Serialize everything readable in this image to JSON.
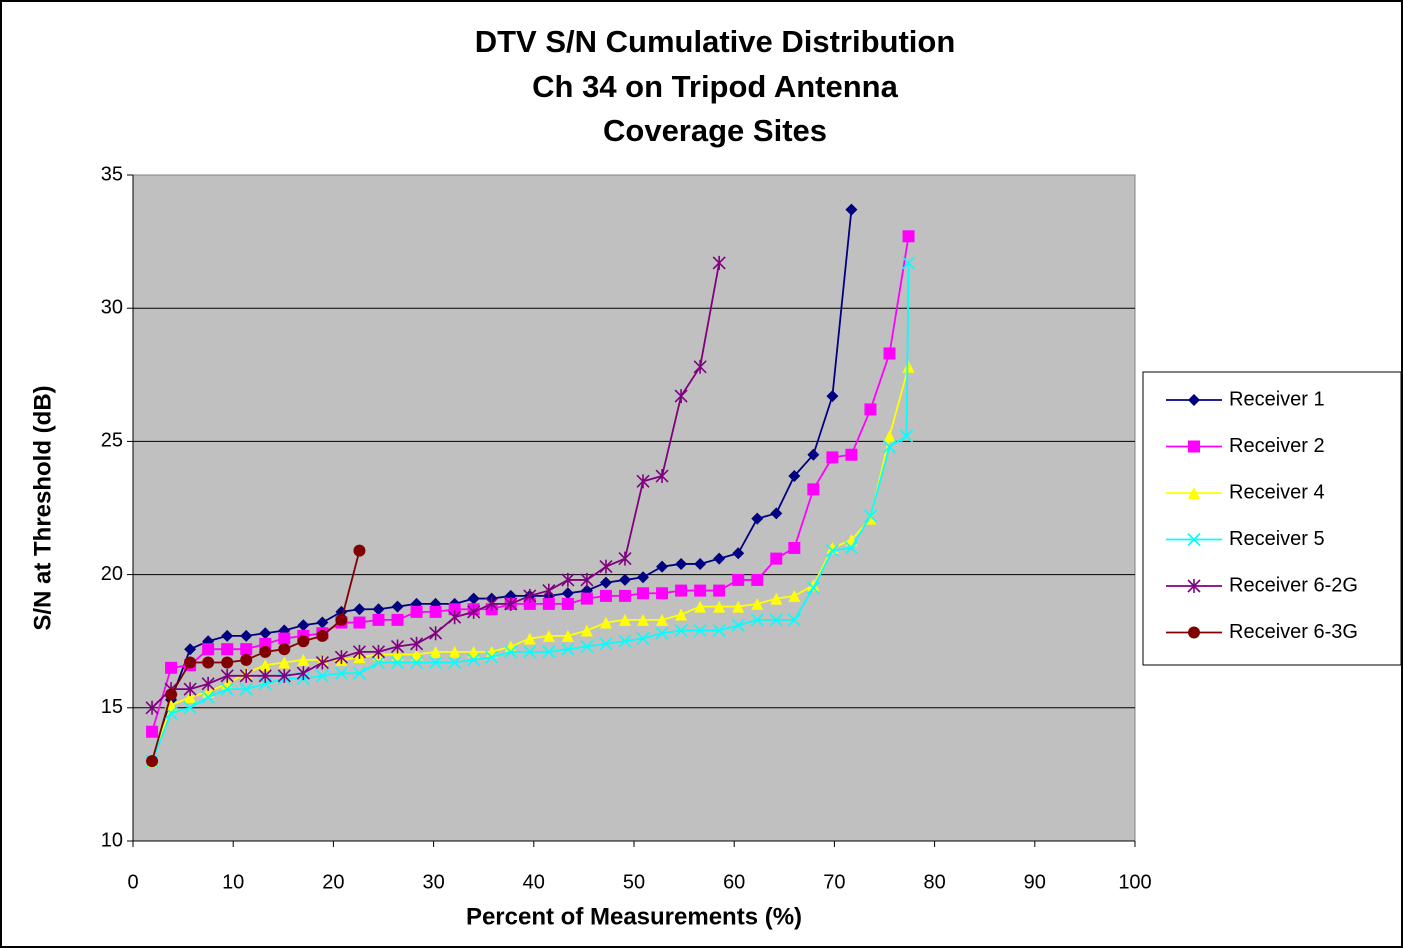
{
  "chart_data": {
    "type": "line",
    "title": [
      "DTV S/N Cumulative Distribution",
      "Ch 34 on Tripod Antenna",
      "Coverage Sites"
    ],
    "x_label": "Percent of Measurements (%)",
    "y_label": "S/N at Threshold (dB)",
    "xlim": [
      0,
      100
    ],
    "xticks": [
      0,
      10,
      20,
      30,
      40,
      50,
      60,
      70,
      80,
      90,
      100
    ],
    "ylim": [
      10,
      35
    ],
    "yticks": [
      10,
      15,
      20,
      25,
      30,
      35
    ],
    "grid": true,
    "legend": "right",
    "series": [
      {
        "name": "Receiver 1",
        "color": "#000080",
        "marker": "diamond",
        "x": [
          1.9,
          3.8,
          5.7,
          7.5,
          9.4,
          11.3,
          13.2,
          15.1,
          17.0,
          18.9,
          20.8,
          22.6,
          24.5,
          26.4,
          28.3,
          30.2,
          32.1,
          34.0,
          35.8,
          37.7,
          39.6,
          41.5,
          43.4,
          45.3,
          47.2,
          49.1,
          50.9,
          52.8,
          54.7,
          56.6,
          58.5,
          60.4,
          62.3,
          64.2,
          66.0,
          67.9,
          69.8,
          71.7
        ],
        "values": [
          13.0,
          15.3,
          17.2,
          17.5,
          17.7,
          17.7,
          17.8,
          17.9,
          18.1,
          18.2,
          18.6,
          18.7,
          18.7,
          18.8,
          18.9,
          18.9,
          18.9,
          19.1,
          19.1,
          19.2,
          19.2,
          19.2,
          19.3,
          19.4,
          19.7,
          19.8,
          19.9,
          20.3,
          20.4,
          20.4,
          20.6,
          20.8,
          22.1,
          22.3,
          23.7,
          24.5,
          26.7,
          33.7
        ]
      },
      {
        "name": "Receiver 2",
        "color": "#FF00FF",
        "marker": "square",
        "x": [
          1.9,
          3.8,
          5.7,
          7.5,
          9.4,
          11.3,
          13.2,
          15.1,
          17.0,
          18.9,
          20.8,
          22.6,
          24.5,
          26.4,
          28.3,
          30.2,
          32.1,
          34.0,
          35.8,
          37.7,
          39.6,
          41.5,
          43.4,
          45.3,
          47.2,
          49.1,
          50.9,
          52.8,
          54.7,
          56.6,
          58.5,
          60.4,
          62.3,
          64.2,
          66.0,
          67.9,
          69.8,
          71.7,
          73.6,
          75.5,
          77.4
        ],
        "values": [
          14.1,
          16.5,
          16.6,
          17.2,
          17.2,
          17.2,
          17.4,
          17.6,
          17.7,
          17.8,
          18.2,
          18.2,
          18.3,
          18.3,
          18.6,
          18.6,
          18.7,
          18.7,
          18.7,
          18.9,
          18.9,
          18.9,
          18.9,
          19.1,
          19.2,
          19.2,
          19.3,
          19.3,
          19.4,
          19.4,
          19.4,
          19.8,
          19.8,
          20.6,
          21.0,
          23.2,
          24.4,
          24.5,
          26.2,
          28.3,
          32.7
        ]
      },
      {
        "name": "Receiver 4",
        "color": "#FFFF00",
        "marker": "triangle",
        "x": [
          1.9,
          3.8,
          5.7,
          7.5,
          9.4,
          11.3,
          13.2,
          15.1,
          17.0,
          18.9,
          20.8,
          22.6,
          24.5,
          26.4,
          28.3,
          30.2,
          32.1,
          34.0,
          35.8,
          37.7,
          39.6,
          41.5,
          43.4,
          45.3,
          47.2,
          49.1,
          50.9,
          52.8,
          54.7,
          56.6,
          58.5,
          60.4,
          62.3,
          64.2,
          66.0,
          67.9,
          69.8,
          71.7,
          73.6,
          75.5,
          77.4
        ],
        "values": [
          13.0,
          15.1,
          15.4,
          15.6,
          15.9,
          16.3,
          16.6,
          16.7,
          16.8,
          16.8,
          16.8,
          16.9,
          17.0,
          17.0,
          17.0,
          17.1,
          17.1,
          17.1,
          17.1,
          17.3,
          17.6,
          17.7,
          17.7,
          17.9,
          18.2,
          18.3,
          18.3,
          18.3,
          18.5,
          18.8,
          18.8,
          18.8,
          18.9,
          19.1,
          19.2,
          19.6,
          21.0,
          21.3,
          22.1,
          25.2,
          27.8
        ]
      },
      {
        "name": "Receiver 5",
        "color": "#00FFFF",
        "marker": "x",
        "x": [
          1.9,
          3.8,
          5.7,
          7.5,
          9.4,
          11.3,
          13.2,
          15.1,
          17.0,
          18.9,
          20.8,
          22.6,
          24.5,
          26.4,
          28.3,
          30.2,
          32.1,
          34.0,
          35.8,
          37.7,
          39.6,
          41.5,
          43.4,
          45.3,
          47.2,
          49.1,
          50.9,
          52.8,
          54.7,
          56.6,
          58.5,
          60.4,
          62.3,
          64.2,
          66.0,
          67.9,
          69.8,
          71.7,
          73.6,
          75.5,
          77.2,
          77.4
        ],
        "values": [
          13.0,
          14.8,
          15.0,
          15.4,
          15.7,
          15.7,
          15.9,
          16.1,
          16.1,
          16.2,
          16.3,
          16.3,
          16.7,
          16.7,
          16.7,
          16.7,
          16.7,
          16.8,
          16.9,
          17.1,
          17.1,
          17.1,
          17.2,
          17.3,
          17.4,
          17.5,
          17.6,
          17.8,
          17.9,
          17.9,
          17.9,
          18.1,
          18.3,
          18.3,
          18.3,
          19.5,
          20.9,
          21.0,
          22.2,
          24.8,
          25.2,
          31.7
        ]
      },
      {
        "name": "Receiver 6-2G",
        "color": "#800080",
        "marker": "asterisk",
        "x": [
          1.9,
          3.8,
          5.7,
          7.5,
          9.4,
          11.3,
          13.2,
          15.1,
          17.0,
          18.9,
          20.8,
          22.6,
          24.5,
          26.4,
          28.3,
          30.2,
          32.1,
          34.0,
          35.8,
          37.7,
          39.6,
          41.5,
          43.4,
          45.3,
          47.2,
          49.1,
          50.9,
          52.8,
          54.7,
          56.6,
          58.5
        ],
        "values": [
          15.0,
          15.7,
          15.7,
          15.9,
          16.2,
          16.2,
          16.2,
          16.2,
          16.3,
          16.7,
          16.9,
          17.1,
          17.1,
          17.3,
          17.4,
          17.8,
          18.4,
          18.6,
          18.9,
          18.9,
          19.2,
          19.4,
          19.8,
          19.8,
          20.3,
          20.6,
          23.5,
          23.7,
          26.7,
          27.8,
          31.7
        ]
      },
      {
        "name": "Receiver 6-3G",
        "color": "#800000",
        "marker": "circle",
        "x": [
          1.9,
          3.8,
          5.7,
          7.5,
          9.4,
          11.3,
          13.2,
          15.1,
          17.0,
          18.9,
          20.8,
          22.6
        ],
        "values": [
          13.0,
          15.5,
          16.7,
          16.7,
          16.7,
          16.8,
          17.1,
          17.2,
          17.5,
          17.7,
          18.3,
          20.9
        ]
      }
    ]
  }
}
